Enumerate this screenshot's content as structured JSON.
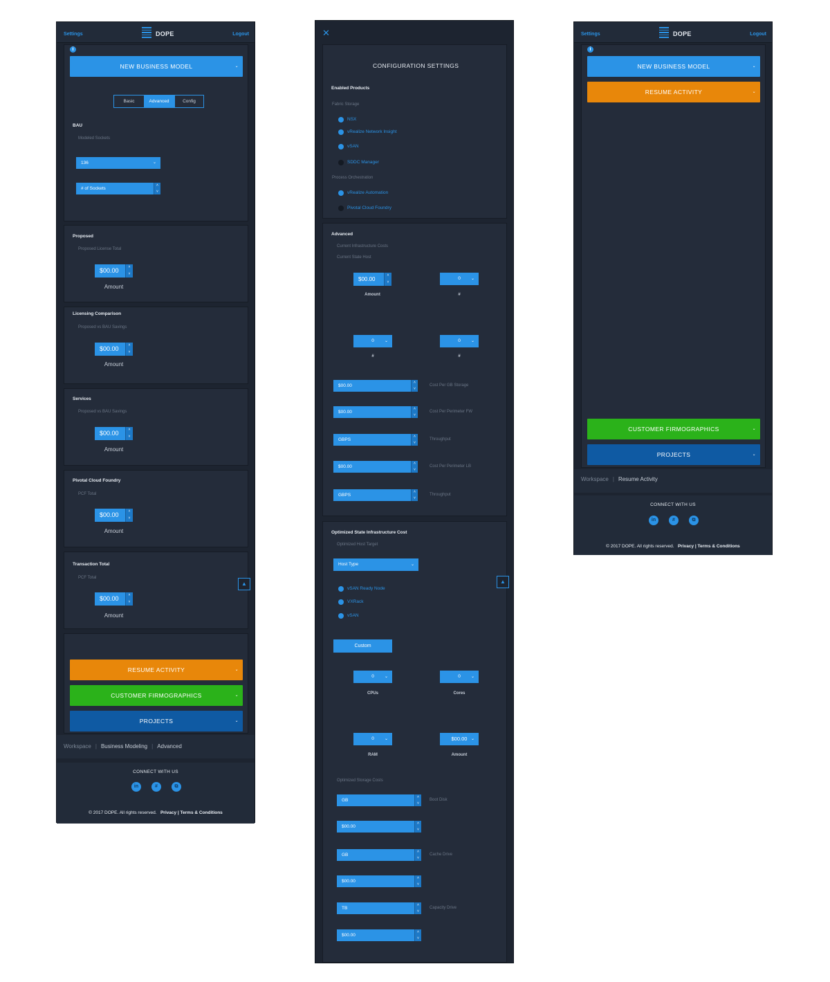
{
  "common": {
    "settings": "Settings",
    "logout": "Logout",
    "logo_text": "DOPE",
    "info_icon": "i",
    "connect": "CONNECT WITH US",
    "social": [
      "in",
      "#",
      "⧉"
    ],
    "copyright": "© 2017 DOPE. All rights reserved.",
    "privacy_terms": "Privacy | Terms & Conditions",
    "up_arrow": "▲",
    "chevron": "⌄",
    "spin_up": "˄",
    "spin_down": "˅"
  },
  "screen1": {
    "new_model": "NEW BUSINESS MODEL",
    "tabs": [
      "Basic",
      "Advanced",
      "Config"
    ],
    "active_tab": "Advanced",
    "bau": {
      "title": "BAU",
      "sub": "Modeled Sockets",
      "dropdown": "136",
      "spinner": "# of Sockets"
    },
    "cards": [
      {
        "title": "Proposed",
        "sub": "Proposed License Total",
        "value": "$00.00",
        "label": "Amount"
      },
      {
        "title": "Licensing Comparison",
        "sub": "Proposed vs BAU Savings",
        "value": "$00.00",
        "label": "Amount"
      },
      {
        "title": "Services",
        "sub": "Proposed vs BAU Savings",
        "value": "$00.00",
        "label": "Amount"
      },
      {
        "title": "Pivotal Cloud Foundry",
        "sub": "PCF Total",
        "value": "$00.00",
        "label": "Amount"
      },
      {
        "title": "Transaction Total",
        "sub": "PCF Total",
        "value": "$00.00",
        "label": "Amount"
      }
    ],
    "resume": "RESUME ACTIVITY",
    "firmographics": "CUSTOMER FIRMOGRAPHICS",
    "projects": "PROJECTS",
    "breadcrumb": [
      "Workspace",
      "Business Modeling",
      "Advanced"
    ]
  },
  "screen2": {
    "close": "✕",
    "title": "CONFIGURATION SETTINGS",
    "enabled_products": "Enabled Products",
    "fabric_storage": "Fabric Storage",
    "fabric_items": [
      {
        "label": "NSX",
        "on": true
      },
      {
        "label": "vRealize Network Insight",
        "on": true
      },
      {
        "label": "vSAN",
        "on": true
      },
      {
        "label": "SDDC Manager",
        "on": false
      }
    ],
    "process_orchestration": "Process Orchestration",
    "process_items": [
      {
        "label": "vRealize Automation",
        "on": true
      },
      {
        "label": "Pivotal Cloud Foundry",
        "on": false
      }
    ],
    "advanced": {
      "title": "Advanced",
      "sub1": "Current Infrastructure Costs",
      "sub2": "Current State Host",
      "amount_value": "$00.00",
      "amount_label": "Amount",
      "hash_value": "0",
      "hash_label": "#",
      "rows": [
        {
          "value": "$00.00",
          "label": "Cost Per GB Storage"
        },
        {
          "value": "$00.00",
          "label": "Cost Per Perimeter FW"
        },
        {
          "value": "GBPS",
          "label": "Throughput"
        },
        {
          "value": "$00.00",
          "label": "Cost Per Perimeter LB"
        },
        {
          "value": "GBPS",
          "label": "Throughput"
        }
      ]
    },
    "optimized": {
      "title": "Optimized State Infrastructure Cost",
      "sub": "Optimized Host Target",
      "host_type": "Host Type",
      "radios": [
        "vSAN Ready Node",
        "VXRack",
        "vSAN"
      ],
      "custom": "Custom",
      "cpus_value": "0",
      "cpus_label": "CPUs",
      "cores_value": "0",
      "cores_label": "Cores",
      "ram_value": "0",
      "ram_label": "RAM",
      "amount_value": "$00.00",
      "amount_label": "Amount",
      "storage_sub": "Optimized Storage Costs",
      "storage_rows": [
        {
          "value": "GB",
          "label": "Boot Disk"
        },
        {
          "value": "$00.00",
          "label": ""
        },
        {
          "value": "GB",
          "label": "Cache Drive"
        },
        {
          "value": "$00.00",
          "label": ""
        },
        {
          "value": "TB",
          "label": "Capacity Drive"
        },
        {
          "value": "$00.00",
          "label": ""
        }
      ]
    }
  },
  "screen3": {
    "new_model": "NEW BUSINESS MODEL",
    "resume": "RESUME ACTIVITY",
    "firmographics": "CUSTOMER FIRMOGRAPHICS",
    "projects": "PROJECTS",
    "breadcrumb": [
      "Workspace",
      "Resume Activity"
    ]
  }
}
